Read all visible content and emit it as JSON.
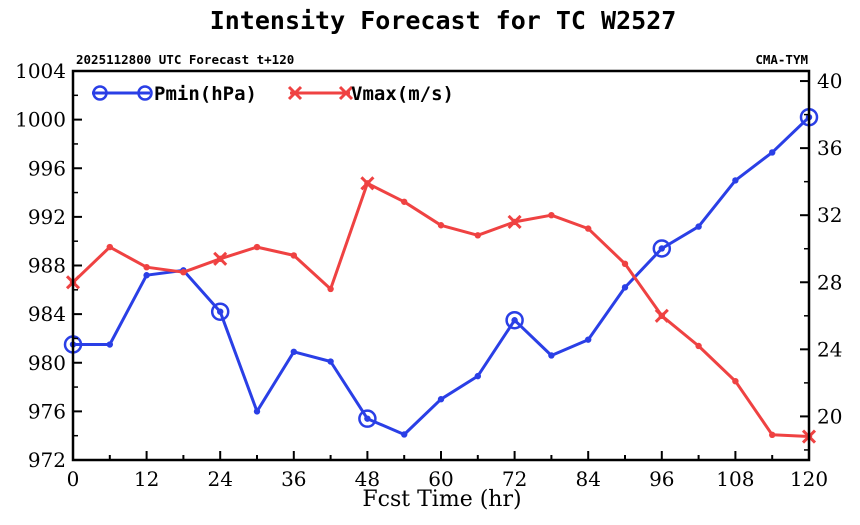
{
  "chart_data": {
    "type": "line",
    "title": "Intensity Forecast for TC W2527",
    "subtitle_left": "2025112800 UTC Forecast t+120",
    "subtitle_right": "CMA-TYM",
    "xlabel": "Fcst Time (hr)",
    "x": [
      0,
      6,
      12,
      18,
      24,
      30,
      36,
      42,
      48,
      54,
      60,
      66,
      72,
      78,
      84,
      90,
      96,
      102,
      108,
      114,
      120
    ],
    "xticks": [
      0,
      12,
      24,
      36,
      48,
      60,
      72,
      84,
      96,
      108,
      120
    ],
    "xlim": [
      0,
      120
    ],
    "y_left": {
      "lim": [
        972,
        1004
      ],
      "ticks": [
        972,
        976,
        980,
        984,
        988,
        992,
        996,
        1000,
        1004
      ]
    },
    "y_right": {
      "lim": [
        17.4,
        40.6
      ],
      "ticks": [
        20,
        24,
        28,
        32,
        36,
        40
      ]
    },
    "series": [
      {
        "name": "Pmin(hPa)",
        "axis": "left",
        "color": "#2a3fe6",
        "marker": "circle-every-24h",
        "values": [
          981.5,
          981.5,
          987.2,
          987.6,
          984.2,
          976.0,
          980.9,
          980.1,
          975.4,
          974.1,
          977.0,
          978.9,
          983.5,
          980.6,
          981.9,
          986.2,
          989.4,
          991.2,
          995.0,
          997.3,
          1000.2
        ]
      },
      {
        "name": "Vmax(m/s)",
        "axis": "right",
        "color": "#ef4242",
        "marker": "x-every-24h",
        "values": [
          28.0,
          30.1,
          28.9,
          28.6,
          29.4,
          30.1,
          29.6,
          27.6,
          33.9,
          32.8,
          31.4,
          30.8,
          31.6,
          32.0,
          31.2,
          29.1,
          26.0,
          24.2,
          22.1,
          18.9,
          18.8
        ]
      }
    ]
  }
}
